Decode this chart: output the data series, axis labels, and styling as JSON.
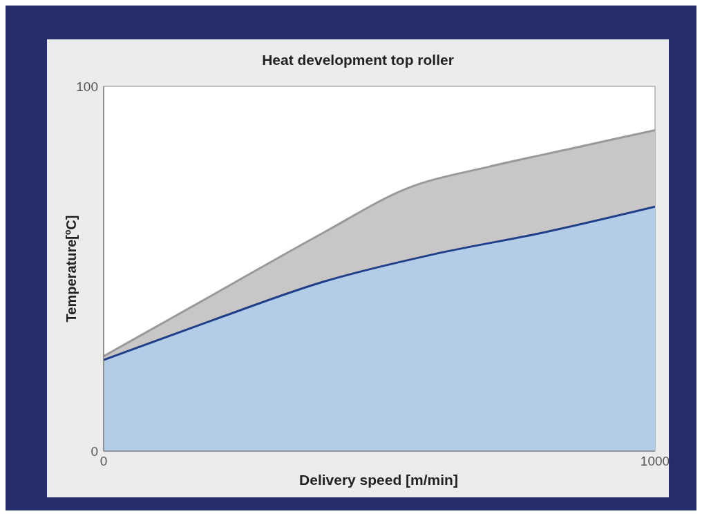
{
  "chart_data": {
    "type": "area",
    "title": "Heat development top roller",
    "xlabel": "Delivery speed [m/min]",
    "ylabel": "Temperature[ºC]",
    "xlim": [
      0,
      1000
    ],
    "xticks": [
      0,
      1000
    ],
    "ylim": [
      0,
      100
    ],
    "yticks": [
      0,
      100
    ],
    "marker": "none",
    "series": [
      {
        "color": "#999999",
        "x": [
          0,
          200,
          400,
          550,
          700,
          850,
          1000
        ],
        "values": [
          26,
          43,
          60,
          72,
          78,
          83,
          88
        ]
      },
      {
        "color": "#1f3f8a",
        "x": [
          0,
          200,
          400,
          600,
          800,
          1000
        ],
        "values": [
          25,
          36,
          46.5,
          54,
          60,
          67
        ]
      }
    ]
  }
}
